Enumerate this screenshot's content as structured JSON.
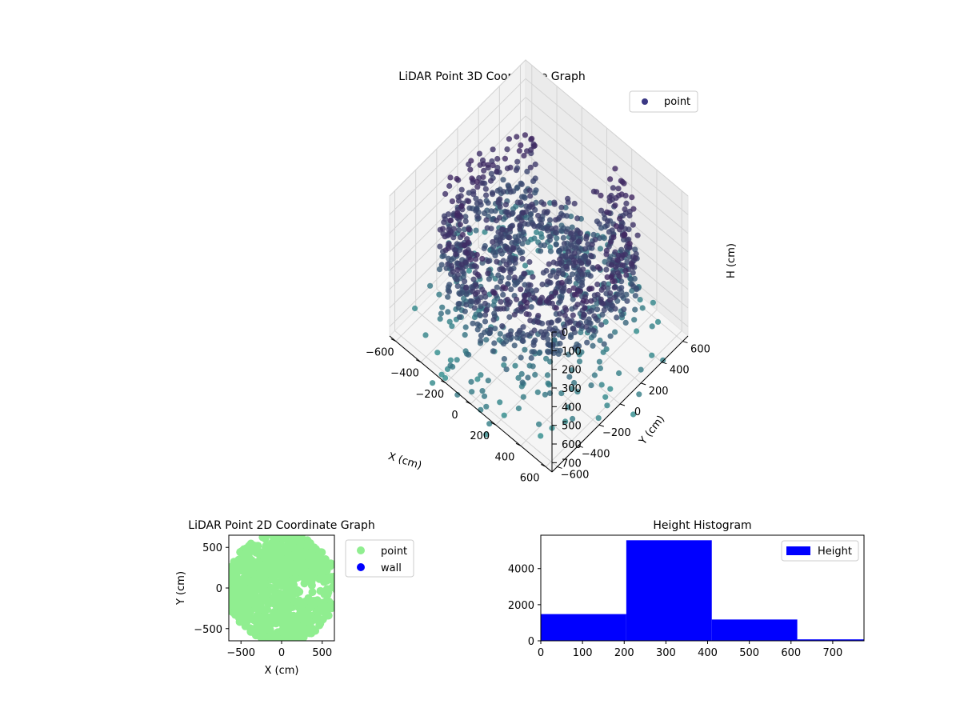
{
  "chart_data": [
    {
      "type": "scatter",
      "projection": "3d",
      "title": "LiDAR Point 3D Coordinate Graph",
      "xlabel": "X (cm)",
      "ylabel": "Y (cm)",
      "zlabel": "H (cm)",
      "x_ticks": [
        "−600",
        "−400",
        "−200",
        "0",
        "200",
        "400",
        "600"
      ],
      "y_ticks": [
        "−600",
        "−400",
        "−200",
        "0",
        "200",
        "400",
        "600"
      ],
      "z_ticks": [
        "0",
        "100",
        "200",
        "300",
        "400",
        "500",
        "600",
        "700"
      ],
      "xlim": [
        -650,
        650
      ],
      "ylim": [
        -650,
        650
      ],
      "zlim": [
        0,
        750
      ],
      "z_inverted": true,
      "grid": true,
      "legend": {
        "position": "top-right",
        "entries": [
          "point"
        ]
      },
      "series": [
        {
          "name": "point",
          "color": "#3b3884",
          "colormap": "viridis"
        }
      ]
    },
    {
      "type": "scatter",
      "title": "LiDAR Point 2D Coordinate Graph",
      "xlabel": "X (cm)",
      "ylabel": "Y (cm)",
      "x_ticks": [
        "−500",
        "0",
        "500"
      ],
      "y_ticks": [
        "500",
        "0",
        "−500"
      ],
      "xlim": [
        -650,
        650
      ],
      "ylim": [
        -650,
        650
      ],
      "legend": {
        "position": "outside-right",
        "entries": [
          "point",
          "wall"
        ]
      },
      "series": [
        {
          "name": "point",
          "color": "#90ee90"
        },
        {
          "name": "wall",
          "color": "#0000ff"
        }
      ]
    },
    {
      "type": "bar",
      "subtype": "histogram",
      "title": "Height Histogram",
      "x_ticks": [
        "0",
        "100",
        "200",
        "300",
        "400",
        "500",
        "600",
        "700"
      ],
      "y_ticks": [
        "0",
        "2000",
        "4000"
      ],
      "xlim": [
        0,
        775
      ],
      "ylim": [
        0,
        5850
      ],
      "bins": [
        {
          "start": 0,
          "end": 205,
          "value": 1480
        },
        {
          "start": 205,
          "end": 410,
          "value": 5570
        },
        {
          "start": 410,
          "end": 615,
          "value": 1180
        },
        {
          "start": 615,
          "end": 775,
          "value": 80
        }
      ],
      "legend": {
        "position": "top-right",
        "entries": [
          "Height"
        ]
      },
      "series": [
        {
          "name": "Height",
          "color": "#0000ff"
        }
      ]
    }
  ]
}
